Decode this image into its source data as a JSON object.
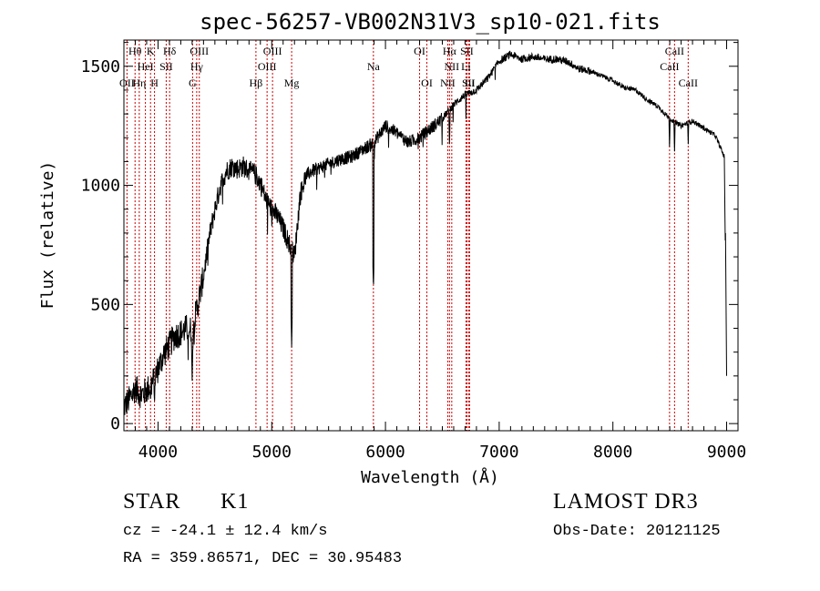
{
  "chart_data": {
    "type": "line",
    "title": "spec-56257-VB002N31V3_sp10-021.fits",
    "xlabel": "Wavelength (Å)",
    "ylabel": "Flux (relative)",
    "xlim": [
      3700,
      9100
    ],
    "ylim": [
      -30,
      1610
    ],
    "xticks": [
      4000,
      5000,
      6000,
      7000,
      8000,
      9000
    ],
    "yticks": [
      0,
      500,
      1000,
      1500
    ],
    "grid": false,
    "line_color": "#000000",
    "marker_color": "#cc0000",
    "lines": [
      {
        "label": "Hθ",
        "wl": 3798,
        "row": 0
      },
      {
        "label": "OII",
        "wl": 3727,
        "row": 2
      },
      {
        "label": "Hη",
        "wl": 3835,
        "row": 2
      },
      {
        "label": "HeI",
        "wl": 3889,
        "row": 1
      },
      {
        "label": "K",
        "wl": 3934,
        "row": 0
      },
      {
        "label": "H",
        "wl": 3969,
        "row": 2
      },
      {
        "label": "SII",
        "wl": 4072,
        "row": 1
      },
      {
        "label": "Hδ",
        "wl": 4102,
        "row": 0
      },
      {
        "label": "G",
        "wl": 4304,
        "row": 2
      },
      {
        "label": "Hγ",
        "wl": 4340,
        "row": 1
      },
      {
        "label": "OIII",
        "wl": 4363,
        "row": 0
      },
      {
        "label": "Hβ",
        "wl": 4861,
        "row": 2
      },
      {
        "label": "OIII",
        "wl": 4959,
        "row": 1
      },
      {
        "label": "OIII",
        "wl": 5007,
        "row": 0
      },
      {
        "label": "Mg",
        "wl": 5175,
        "row": 2
      },
      {
        "label": "Na",
        "wl": 5894,
        "row": 1
      },
      {
        "label": "OI",
        "wl": 6300,
        "row": 0
      },
      {
        "label": "OI",
        "wl": 6364,
        "row": 2
      },
      {
        "label": "NII",
        "wl": 6548,
        "row": 2
      },
      {
        "label": "Hα",
        "wl": 6563,
        "row": 0
      },
      {
        "label": "NII",
        "wl": 6583,
        "row": 1
      },
      {
        "label": "SII",
        "wl": 6716,
        "row": 0
      },
      {
        "label": "SII",
        "wl": 6731,
        "row": 2
      },
      {
        "label": "Li",
        "wl": 6708,
        "row": 1
      },
      {
        "label": "Li",
        "wl": 6740,
        "row": 2
      },
      {
        "label": "CaII",
        "wl": 8498,
        "row": 1
      },
      {
        "label": "CaII",
        "wl": 8542,
        "row": 0
      },
      {
        "label": "CaII",
        "wl": 8662,
        "row": 2
      }
    ],
    "spectrum_anchors": [
      [
        3700,
        70
      ],
      [
        3760,
        110
      ],
      [
        3800,
        150
      ],
      [
        3850,
        120
      ],
      [
        3900,
        140
      ],
      [
        3950,
        170
      ],
      [
        4000,
        230
      ],
      [
        4050,
        290
      ],
      [
        4100,
        330
      ],
      [
        4150,
        370
      ],
      [
        4200,
        380
      ],
      [
        4250,
        400
      ],
      [
        4300,
        390
      ],
      [
        4350,
        500
      ],
      [
        4400,
        620
      ],
      [
        4450,
        780
      ],
      [
        4500,
        900
      ],
      [
        4550,
        1000
      ],
      [
        4600,
        1060
      ],
      [
        4650,
        1080
      ],
      [
        4700,
        1070
      ],
      [
        4750,
        1080
      ],
      [
        4800,
        1060
      ],
      [
        4850,
        1050
      ],
      [
        4900,
        1010
      ],
      [
        4950,
        940
      ],
      [
        5000,
        900
      ],
      [
        5050,
        870
      ],
      [
        5100,
        820
      ],
      [
        5150,
        760
      ],
      [
        5200,
        700
      ],
      [
        5250,
        960
      ],
      [
        5300,
        1040
      ],
      [
        5350,
        1060
      ],
      [
        5400,
        1070
      ],
      [
        5500,
        1090
      ],
      [
        5600,
        1110
      ],
      [
        5700,
        1120
      ],
      [
        5800,
        1150
      ],
      [
        5900,
        1180
      ],
      [
        6000,
        1250
      ],
      [
        6100,
        1220
      ],
      [
        6200,
        1180
      ],
      [
        6300,
        1200
      ],
      [
        6400,
        1240
      ],
      [
        6500,
        1280
      ],
      [
        6600,
        1340
      ],
      [
        6700,
        1380
      ],
      [
        6800,
        1400
      ],
      [
        6900,
        1450
      ],
      [
        7000,
        1520
      ],
      [
        7100,
        1550
      ],
      [
        7200,
        1530
      ],
      [
        7300,
        1540
      ],
      [
        7400,
        1530
      ],
      [
        7500,
        1530
      ],
      [
        7600,
        1520
      ],
      [
        7700,
        1490
      ],
      [
        7800,
        1480
      ],
      [
        7900,
        1460
      ],
      [
        8000,
        1440
      ],
      [
        8100,
        1410
      ],
      [
        8200,
        1400
      ],
      [
        8300,
        1360
      ],
      [
        8400,
        1330
      ],
      [
        8500,
        1280
      ],
      [
        8600,
        1250
      ],
      [
        8700,
        1270
      ],
      [
        8800,
        1240
      ],
      [
        8900,
        1210
      ],
      [
        8980,
        1120
      ],
      [
        9000,
        200
      ]
    ],
    "spectrum_dips": [
      [
        3934,
        80
      ],
      [
        3969,
        70
      ],
      [
        4300,
        180
      ],
      [
        5175,
        320
      ],
      [
        5894,
        560
      ],
      [
        6563,
        1160
      ],
      [
        8498,
        1150
      ],
      [
        8542,
        1130
      ],
      [
        8662,
        1160
      ]
    ]
  },
  "info": {
    "object_class": "STAR",
    "subclass": "K1",
    "survey": "LAMOST DR3",
    "cz": "cz = -24.1 ± 12.4 km/s",
    "obs_date": "Obs-Date: 20121125",
    "coords": "RA = 359.86571, DEC =  30.95483"
  }
}
